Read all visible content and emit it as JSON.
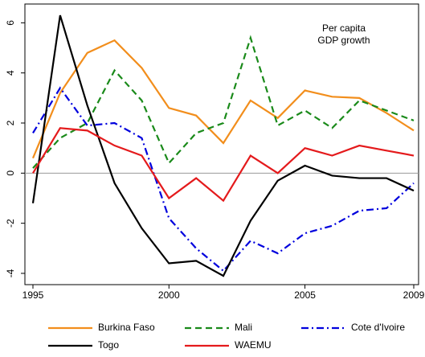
{
  "chart_data": {
    "type": "line",
    "annotation": [
      "Per capita",
      "GDP growth"
    ],
    "x": [
      1995,
      1996,
      1997,
      1998,
      1999,
      2000,
      2001,
      2002,
      2003,
      2004,
      2005,
      2006,
      2007,
      2008,
      2009
    ],
    "series": [
      {
        "name": "Burkina Faso",
        "color": "#f28e1c",
        "dash": "solid",
        "values": [
          0.6,
          3.2,
          4.8,
          5.3,
          4.2,
          2.6,
          2.3,
          1.2,
          2.9,
          2.2,
          3.3,
          3.05,
          3.0,
          2.4,
          1.7
        ]
      },
      {
        "name": "Mali",
        "color": "#1a8a1a",
        "dash": "dash",
        "values": [
          0.2,
          1.4,
          2.0,
          4.1,
          2.9,
          0.4,
          1.6,
          2.0,
          5.4,
          1.9,
          2.5,
          1.8,
          2.9,
          2.5,
          2.1
        ]
      },
      {
        "name": "Cote d'Ivoire",
        "color": "#0000dd",
        "dash": "dashdot",
        "values": [
          1.6,
          3.4,
          1.9,
          2.0,
          1.4,
          -1.8,
          -3.0,
          -3.9,
          -2.7,
          -3.2,
          -2.4,
          -2.1,
          -1.5,
          -1.4,
          -0.4
        ]
      },
      {
        "name": "Togo",
        "color": "#000000",
        "dash": "solid",
        "values": [
          -1.2,
          6.3,
          2.7,
          -0.4,
          -2.2,
          -3.6,
          -3.5,
          -4.1,
          -1.9,
          -0.3,
          0.3,
          -0.1,
          -0.2,
          -0.2,
          -0.7
        ]
      },
      {
        "name": "WAEMU",
        "color": "#e41a1c",
        "dash": "solid",
        "values": [
          0.0,
          1.8,
          1.7,
          1.1,
          0.7,
          -1.0,
          -0.2,
          -1.1,
          0.7,
          0.0,
          1.0,
          0.7,
          1.1,
          0.9,
          0.7
        ]
      }
    ],
    "xlim": [
      1995,
      2009
    ],
    "xticks": [
      1995,
      2000,
      2005,
      2009
    ],
    "ylim": [
      -4.45,
      6.75
    ],
    "yticks": [
      -4,
      -2,
      0,
      2,
      4,
      6
    ],
    "reference_line": 0
  }
}
